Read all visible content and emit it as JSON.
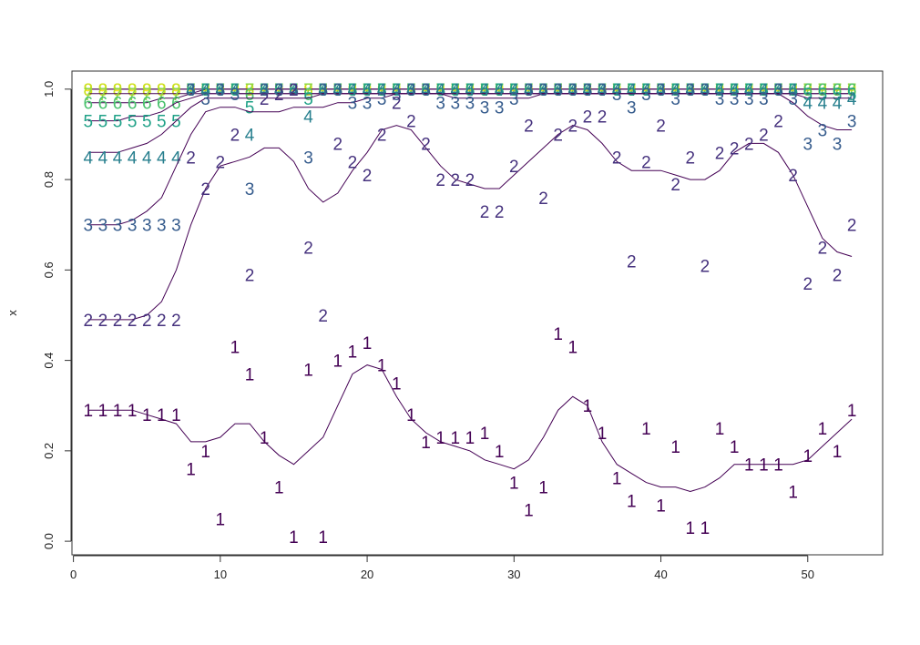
{
  "chart_data": {
    "type": "scatter",
    "title": "",
    "xlabel": "",
    "ylabel": "x",
    "xlim": [
      -0.1,
      55.1
    ],
    "ylim": [
      -0.03,
      1.04
    ],
    "xticks": [
      0,
      10,
      20,
      30,
      40,
      50
    ],
    "yticks": [
      0.0,
      0.2,
      0.4,
      0.6,
      0.8,
      1.0
    ],
    "ytick_labels": [
      "0.0",
      "0.2",
      "0.4",
      "0.6",
      "0.8",
      "1.0"
    ],
    "grid": false,
    "legend": "none",
    "series": [
      {
        "symbol": "1",
        "color": "#440154",
        "points": [
          0.29,
          0.29,
          0.29,
          0.29,
          0.28,
          0.28,
          0.28,
          0.16,
          0.2,
          0.05,
          0.43,
          0.37,
          0.23,
          0.12,
          0.01,
          0.38,
          0.01,
          0.4,
          0.42,
          0.44,
          0.39,
          0.35,
          0.28,
          0.22,
          0.23,
          0.23,
          0.23,
          0.24,
          0.2,
          0.13,
          0.07,
          0.12,
          0.46,
          0.43,
          0.3,
          0.24,
          0.14,
          0.09,
          0.25,
          0.08,
          0.21,
          0.03,
          0.03,
          0.25,
          0.21,
          0.17,
          0.17,
          0.17,
          0.11,
          0.19,
          0.25,
          0.2,
          0.29
        ],
        "smooth": [
          0.29,
          0.29,
          0.29,
          0.29,
          0.28,
          0.27,
          0.26,
          0.22,
          0.22,
          0.23,
          0.26,
          0.26,
          0.22,
          0.19,
          0.17,
          0.2,
          0.23,
          0.3,
          0.37,
          0.39,
          0.38,
          0.32,
          0.27,
          0.24,
          0.22,
          0.21,
          0.2,
          0.18,
          0.17,
          0.16,
          0.18,
          0.23,
          0.29,
          0.32,
          0.3,
          0.22,
          0.17,
          0.15,
          0.13,
          0.12,
          0.12,
          0.11,
          0.12,
          0.14,
          0.17,
          0.17,
          0.17,
          0.17,
          0.17,
          0.18,
          0.21,
          0.24,
          0.27
        ]
      },
      {
        "symbol": "2",
        "color": "#46327e",
        "points": [
          0.49,
          0.49,
          0.49,
          0.49,
          0.49,
          0.49,
          0.49,
          0.85,
          0.78,
          0.84,
          0.9,
          0.59,
          0.98,
          0.99,
          1.0,
          0.65,
          0.5,
          0.88,
          0.84,
          0.81,
          0.9,
          0.97,
          0.93,
          0.88,
          0.8,
          0.8,
          0.8,
          0.73,
          0.73,
          0.83,
          0.92,
          0.76,
          0.9,
          0.92,
          0.94,
          0.94,
          0.85,
          0.62,
          0.84,
          0.92,
          0.79,
          0.85,
          0.61,
          0.86,
          0.87,
          0.88,
          0.9,
          0.93,
          0.81,
          0.57,
          0.65,
          0.59,
          0.7
        ],
        "smooth": [
          0.49,
          0.49,
          0.49,
          0.49,
          0.5,
          0.53,
          0.6,
          0.7,
          0.78,
          0.83,
          0.84,
          0.85,
          0.87,
          0.87,
          0.84,
          0.78,
          0.75,
          0.77,
          0.82,
          0.86,
          0.91,
          0.92,
          0.91,
          0.87,
          0.83,
          0.8,
          0.79,
          0.78,
          0.78,
          0.81,
          0.84,
          0.87,
          0.9,
          0.92,
          0.91,
          0.88,
          0.84,
          0.82,
          0.82,
          0.82,
          0.81,
          0.8,
          0.8,
          0.82,
          0.86,
          0.88,
          0.88,
          0.86,
          0.81,
          0.74,
          0.67,
          0.64,
          0.63
        ]
      },
      {
        "symbol": "3",
        "color": "#365c8d",
        "points": [
          0.7,
          0.7,
          0.7,
          0.7,
          0.7,
          0.7,
          0.7,
          1.0,
          0.98,
          1.0,
          0.99,
          0.78,
          1.0,
          1.0,
          1.0,
          0.85,
          1.0,
          1.0,
          0.97,
          0.97,
          0.98,
          0.99,
          1.0,
          1.0,
          0.97,
          0.97,
          0.97,
          0.96,
          0.96,
          0.98,
          1.0,
          1.0,
          1.0,
          1.0,
          1.0,
          1.0,
          0.99,
          0.96,
          0.99,
          1.0,
          0.98,
          1.0,
          1.0,
          0.98,
          0.98,
          0.98,
          0.98,
          1.0,
          0.98,
          0.88,
          0.91,
          0.88,
          0.93
        ],
        "smooth": [
          0.7,
          0.7,
          0.7,
          0.71,
          0.73,
          0.76,
          0.83,
          0.9,
          0.95,
          0.96,
          0.96,
          0.95,
          0.95,
          0.95,
          0.96,
          0.96,
          0.96,
          0.97,
          0.97,
          0.98,
          0.98,
          0.99,
          0.99,
          0.99,
          0.99,
          0.98,
          0.98,
          0.98,
          0.98,
          0.98,
          0.98,
          0.99,
          0.99,
          0.99,
          0.99,
          0.99,
          0.99,
          0.99,
          0.99,
          0.99,
          0.99,
          0.99,
          0.99,
          0.99,
          0.99,
          0.99,
          0.99,
          0.99,
          0.97,
          0.94,
          0.92,
          0.91,
          0.91
        ]
      },
      {
        "symbol": "4",
        "color": "#277f8e",
        "points": [
          0.85,
          0.85,
          0.85,
          0.85,
          0.85,
          0.85,
          0.85,
          1.0,
          1.0,
          1.0,
          1.0,
          0.9,
          1.0,
          1.0,
          1.0,
          0.94,
          1.0,
          1.0,
          1.0,
          1.0,
          1.0,
          1.0,
          1.0,
          1.0,
          1.0,
          1.0,
          1.0,
          1.0,
          1.0,
          1.0,
          1.0,
          1.0,
          1.0,
          1.0,
          1.0,
          1.0,
          1.0,
          1.0,
          1.0,
          1.0,
          1.0,
          1.0,
          1.0,
          1.0,
          1.0,
          1.0,
          1.0,
          1.0,
          1.0,
          0.97,
          0.97,
          0.97,
          0.98
        ],
        "smooth": [
          0.86,
          0.86,
          0.86,
          0.87,
          0.88,
          0.9,
          0.93,
          0.96,
          0.98,
          0.98,
          0.98,
          0.98,
          0.98,
          0.98,
          0.98,
          0.98,
          0.99,
          0.99,
          0.99,
          0.99,
          0.99,
          0.99,
          0.99,
          0.99,
          0.99,
          0.99,
          0.99,
          0.99,
          0.99,
          0.99,
          0.99,
          0.99,
          0.99,
          0.99,
          0.99,
          0.99,
          0.99,
          0.99,
          0.99,
          0.99,
          0.99,
          0.99,
          0.99,
          0.99,
          0.99,
          0.99,
          0.99,
          0.99,
          0.99,
          0.98,
          0.98,
          0.98,
          0.98
        ]
      },
      {
        "symbol": "5",
        "color": "#1fa187",
        "points": [
          0.93,
          0.93,
          0.93,
          0.93,
          0.93,
          0.93,
          0.93,
          1.0,
          1.0,
          1.0,
          1.0,
          0.96,
          1.0,
          1.0,
          1.0,
          0.98,
          1.0,
          1.0,
          1.0,
          1.0,
          1.0,
          1.0,
          1.0,
          1.0,
          1.0,
          1.0,
          1.0,
          1.0,
          1.0,
          1.0,
          1.0,
          1.0,
          1.0,
          1.0,
          1.0,
          1.0,
          1.0,
          1.0,
          1.0,
          1.0,
          1.0,
          1.0,
          1.0,
          1.0,
          1.0,
          1.0,
          1.0,
          1.0,
          1.0,
          0.99,
          0.99,
          0.99,
          0.99
        ],
        "smooth": [
          0.93,
          0.93,
          0.93,
          0.94,
          0.94,
          0.95,
          0.97,
          0.98,
          0.99,
          0.99,
          0.99,
          0.99,
          0.99,
          0.99,
          0.99,
          0.99,
          0.99,
          0.99,
          0.99,
          0.99,
          0.99,
          0.99,
          0.99,
          0.99,
          0.99,
          0.99,
          0.99,
          0.99,
          0.99,
          0.99,
          0.99,
          0.99,
          0.99,
          0.99,
          0.99,
          0.99,
          0.99,
          0.99,
          0.99,
          0.99,
          0.99,
          0.99,
          0.99,
          0.99,
          0.99,
          0.99,
          0.99,
          0.99,
          0.99,
          0.99,
          0.99,
          0.99,
          0.99
        ]
      },
      {
        "symbol": "6",
        "color": "#4ac16d",
        "points": [
          0.97,
          0.97,
          0.97,
          0.97,
          0.97,
          0.97,
          0.97,
          1.0,
          1.0,
          1.0,
          1.0,
          0.99,
          1.0,
          1.0,
          1.0,
          0.99,
          1.0,
          1.0,
          1.0,
          1.0,
          1.0,
          1.0,
          1.0,
          1.0,
          1.0,
          1.0,
          1.0,
          1.0,
          1.0,
          1.0,
          1.0,
          1.0,
          1.0,
          1.0,
          1.0,
          1.0,
          1.0,
          1.0,
          1.0,
          1.0,
          1.0,
          1.0,
          1.0,
          1.0,
          1.0,
          1.0,
          1.0,
          1.0,
          1.0,
          1.0,
          1.0,
          1.0,
          1.0
        ],
        "smooth": [
          0.97,
          0.97,
          0.97,
          0.97,
          0.97,
          0.98,
          0.98,
          0.99,
          0.99,
          0.99,
          0.99,
          0.99,
          0.99,
          0.99,
          0.99,
          0.99,
          0.99,
          0.99,
          0.99,
          0.99,
          0.99,
          0.99,
          0.99,
          0.99,
          0.99,
          0.99,
          0.99,
          0.99,
          0.99,
          0.99,
          0.99,
          0.99,
          0.99,
          0.99,
          0.99,
          0.99,
          0.99,
          0.99,
          0.99,
          0.99,
          0.99,
          0.99,
          0.99,
          0.99,
          0.99,
          0.99,
          0.99,
          0.99,
          0.99,
          0.99,
          0.99,
          0.99,
          0.99
        ]
      },
      {
        "symbol": "7",
        "color": "#8fd744",
        "points": [
          0.99,
          0.99,
          0.99,
          0.99,
          0.99,
          0.99,
          0.99,
          1.0,
          1.0,
          1.0,
          1.0,
          1.0,
          1.0,
          1.0,
          1.0,
          1.0,
          1.0,
          1.0,
          1.0,
          1.0,
          1.0,
          1.0,
          1.0,
          1.0,
          1.0,
          1.0,
          1.0,
          1.0,
          1.0,
          1.0,
          1.0,
          1.0,
          1.0,
          1.0,
          1.0,
          1.0,
          1.0,
          1.0,
          1.0,
          1.0,
          1.0,
          1.0,
          1.0,
          1.0,
          1.0,
          1.0,
          1.0,
          1.0,
          1.0,
          1.0,
          1.0,
          1.0,
          1.0
        ],
        "smooth": [
          0.99,
          0.99,
          0.99,
          0.99,
          0.99,
          0.99,
          0.99,
          0.99,
          1.0,
          1.0,
          1.0,
          1.0,
          1.0,
          1.0,
          1.0,
          1.0,
          1.0,
          1.0,
          1.0,
          1.0,
          1.0,
          1.0,
          1.0,
          1.0,
          1.0,
          1.0,
          1.0,
          1.0,
          1.0,
          1.0,
          1.0,
          1.0,
          1.0,
          1.0,
          1.0,
          1.0,
          1.0,
          1.0,
          1.0,
          1.0,
          1.0,
          1.0,
          1.0,
          1.0,
          1.0,
          1.0,
          1.0,
          1.0,
          1.0,
          1.0,
          1.0,
          1.0,
          1.0
        ]
      },
      {
        "symbol": "8",
        "color": "#c8e020",
        "points": [
          1.0,
          1.0,
          1.0,
          1.0,
          1.0,
          1.0,
          1.0,
          1.0,
          1.0,
          1.0,
          1.0,
          1.0,
          1.0,
          1.0,
          1.0,
          1.0,
          1.0,
          1.0,
          1.0,
          1.0,
          1.0,
          1.0,
          1.0,
          1.0,
          1.0,
          1.0,
          1.0,
          1.0,
          1.0,
          1.0,
          1.0,
          1.0,
          1.0,
          1.0,
          1.0,
          1.0,
          1.0,
          1.0,
          1.0,
          1.0,
          1.0,
          1.0,
          1.0,
          1.0,
          1.0,
          1.0,
          1.0,
          1.0,
          1.0,
          1.0,
          1.0,
          1.0,
          1.0
        ],
        "smooth": [
          1.0,
          1.0,
          1.0,
          1.0,
          1.0,
          1.0,
          1.0,
          1.0,
          1.0,
          1.0,
          1.0,
          1.0,
          1.0,
          1.0,
          1.0,
          1.0,
          1.0,
          1.0,
          1.0,
          1.0,
          1.0,
          1.0,
          1.0,
          1.0,
          1.0,
          1.0,
          1.0,
          1.0,
          1.0,
          1.0,
          1.0,
          1.0,
          1.0,
          1.0,
          1.0,
          1.0,
          1.0,
          1.0,
          1.0,
          1.0,
          1.0,
          1.0,
          1.0,
          1.0,
          1.0,
          1.0,
          1.0,
          1.0,
          1.0,
          1.0,
          1.0,
          1.0,
          1.0
        ]
      },
      {
        "symbol": "9",
        "color": "#fde725",
        "points": [
          1.0,
          1.0,
          1.0,
          1.0,
          1.0,
          1.0,
          1.0,
          1.0,
          1.0,
          1.0,
          1.0,
          1.0,
          1.0,
          1.0,
          1.0,
          1.0,
          1.0,
          1.0,
          1.0,
          1.0,
          1.0,
          1.0,
          1.0,
          1.0,
          1.0,
          1.0,
          1.0,
          1.0,
          1.0,
          1.0,
          1.0,
          1.0,
          1.0,
          1.0,
          1.0,
          1.0,
          1.0,
          1.0,
          1.0,
          1.0,
          1.0,
          1.0,
          1.0,
          1.0,
          1.0,
          1.0,
          1.0,
          1.0,
          1.0,
          1.0,
          1.0,
          1.0,
          1.0
        ],
        "smooth": [
          1.0,
          1.0,
          1.0,
          1.0,
          1.0,
          1.0,
          1.0,
          1.0,
          1.0,
          1.0,
          1.0,
          1.0,
          1.0,
          1.0,
          1.0,
          1.0,
          1.0,
          1.0,
          1.0,
          1.0,
          1.0,
          1.0,
          1.0,
          1.0,
          1.0,
          1.0,
          1.0,
          1.0,
          1.0,
          1.0,
          1.0,
          1.0,
          1.0,
          1.0,
          1.0,
          1.0,
          1.0,
          1.0,
          1.0,
          1.0,
          1.0,
          1.0,
          1.0,
          1.0,
          1.0,
          1.0,
          1.0,
          1.0,
          1.0,
          1.0,
          1.0,
          1.0,
          1.0
        ]
      }
    ]
  }
}
